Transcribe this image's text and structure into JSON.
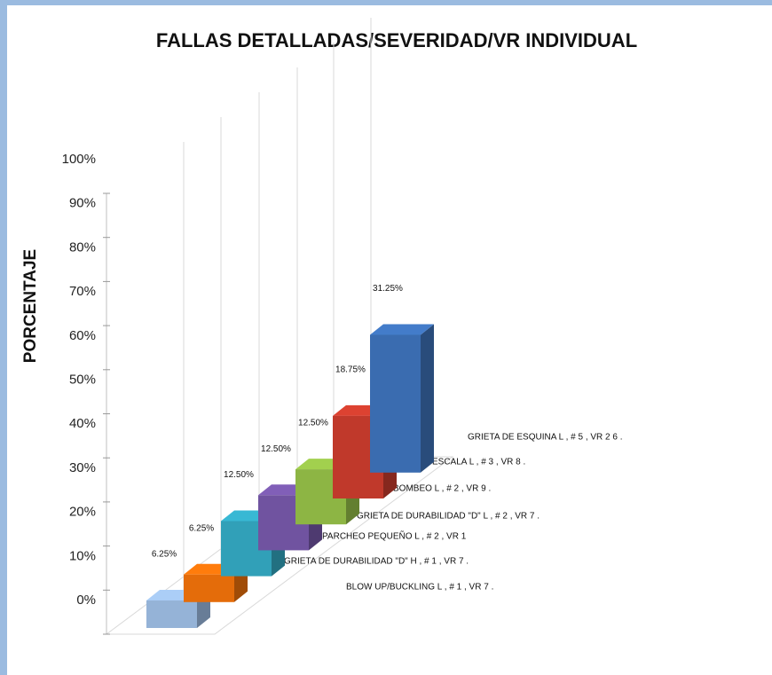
{
  "chart_data": {
    "type": "bar3d",
    "title": "FALLAS DETALLADAS/SEVERIDAD/VR INDIVIDUAL",
    "y_label": "PORCENTAJE",
    "categories": [
      "BLOW UP/BUCKLING  L , # 1 , VR 7 .",
      "GRIETA  DE DURABILIDAD \"D\" H , # 1 , VR 7 .",
      "PARCHEO  PEQUEÑO  L , # 2 , VR 1",
      "GRIETA  DE DURABILIDAD \"D\" L , # 2 , VR 7 .",
      "BOMBEO   L , # 2 , VR 9 .",
      "ESCALA  L , # 3 , VR 8 .",
      "GRIETA  DE ESQUINA   L , # 5 , VR 2 6 ."
    ],
    "values": [
      6.25,
      6.25,
      12.5,
      12.5,
      12.5,
      18.75,
      31.25
    ],
    "value_labels": [
      "6.25%",
      "6.25%",
      "12.50%",
      "12.50%",
      "12.50%",
      "18.75%",
      "31.25%"
    ],
    "colors": [
      "#95b3d7",
      "#e46c0a",
      "#31a0b8",
      "#7053a0",
      "#8db544",
      "#c0392b",
      "#3a6cb0"
    ],
    "ylim": [
      0,
      100
    ],
    "yticks": [
      {
        "value": 0,
        "label": "0%"
      },
      {
        "value": 10,
        "label": "10%"
      },
      {
        "value": 20,
        "label": "20%"
      },
      {
        "value": 30,
        "label": "30%"
      },
      {
        "value": 40,
        "label": "40%"
      },
      {
        "value": 50,
        "label": "50%"
      },
      {
        "value": 60,
        "label": "60%"
      },
      {
        "value": 70,
        "label": "70%"
      },
      {
        "value": 80,
        "label": "80%"
      },
      {
        "value": 90,
        "label": "90%"
      },
      {
        "value": 100,
        "label": "100%"
      }
    ],
    "grid": true
  }
}
